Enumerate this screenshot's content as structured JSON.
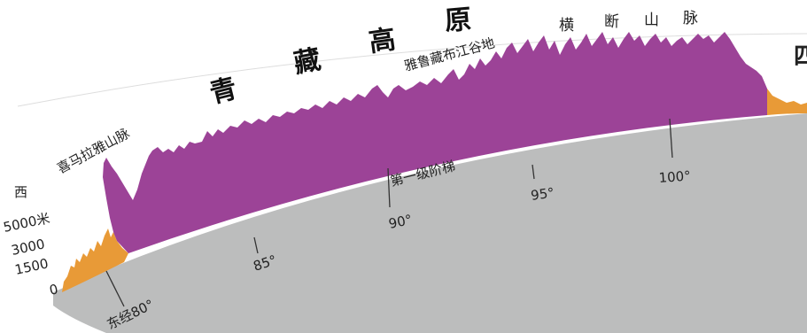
{
  "colors": {
    "plateau": "#9c4397",
    "lowland": "#e89a37",
    "crust": "#bcbdbd",
    "tick": "#333333"
  },
  "labels": {
    "direction_west": "西",
    "himalaya": "喜马拉雅山脉",
    "plateau_chars": [
      "青",
      "藏",
      "高",
      "原"
    ],
    "yarlung": "雅鲁藏布江谷地",
    "hengduan_chars": [
      "横",
      "断",
      "山",
      "脉"
    ],
    "direction_east_partial": "四",
    "first_step": "第一级阶梯"
  },
  "elevation_axis": {
    "ticks": [
      "5000米",
      "3000",
      "1500",
      "0"
    ]
  },
  "longitude_axis": {
    "ticks": [
      "东经80°",
      "85°",
      "90°",
      "95°",
      "100°"
    ]
  }
}
